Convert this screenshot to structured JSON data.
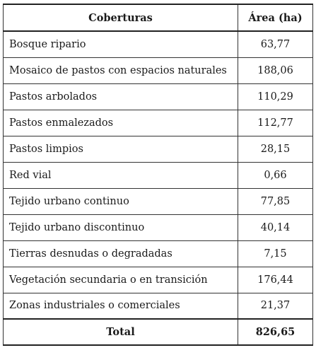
{
  "table": {
    "headers": [
      "Coberturas",
      "Área (ha)"
    ],
    "rows": [
      {
        "name": "Bosque ripario",
        "area": "63,77"
      },
      {
        "name": "Mosaico de pastos con espacios naturales",
        "area": "188,06"
      },
      {
        "name": "Pastos arbolados",
        "area": "110,29"
      },
      {
        "name": "Pastos enmalezados",
        "area": "112,77"
      },
      {
        "name": "Pastos limpios",
        "area": "28,15"
      },
      {
        "name": "Red vial",
        "area": "0,66"
      },
      {
        "name": "Tejido urbano continuo",
        "area": "77,85"
      },
      {
        "name": "Tejido urbano discontinuo",
        "area": "40,14"
      },
      {
        "name": "Tierras desnudas o degradadas",
        "area": "7,15"
      },
      {
        "name": "Vegetación secundaria o en transición",
        "area": "176,44"
      },
      {
        "name": "Zonas industriales o comerciales",
        "area": "21,37"
      }
    ],
    "total": {
      "label": "Total",
      "area": "826,65"
    }
  }
}
